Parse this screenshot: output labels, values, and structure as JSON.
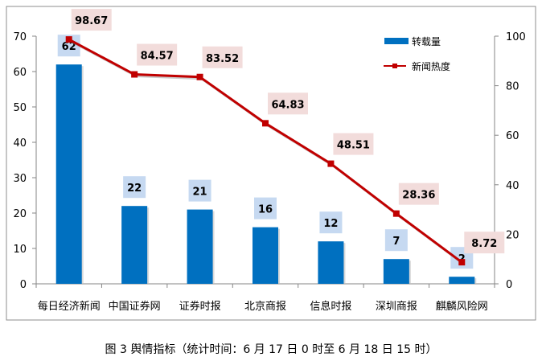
{
  "chart_data": {
    "type": "bar+line",
    "categories": [
      "每日经济新闻",
      "中国证券网",
      "证券时报",
      "北京商报",
      "信息时报",
      "深圳商报",
      "麒麟风险网"
    ],
    "series": [
      {
        "name": "转载量",
        "type": "bar",
        "axis": "left",
        "color": "#0070C0",
        "values": [
          62,
          22,
          21,
          16,
          12,
          7,
          2
        ]
      },
      {
        "name": "新闻热度",
        "type": "line",
        "axis": "right",
        "color": "#C00000",
        "values": [
          98.67,
          84.57,
          83.52,
          64.83,
          48.51,
          28.36,
          8.72
        ]
      }
    ],
    "ylim_left": [
      0,
      70
    ],
    "yticks_left": [
      0,
      10,
      20,
      30,
      40,
      50,
      60,
      70
    ],
    "ylim_right": [
      0,
      100
    ],
    "yticks_right": [
      0,
      20,
      40,
      60,
      80,
      100
    ],
    "legend": "top-right",
    "grid": false
  },
  "caption": "图 3  舆情指标（统计时间：6 月 17 日 0 时至 6 月 18 日 15 时）"
}
